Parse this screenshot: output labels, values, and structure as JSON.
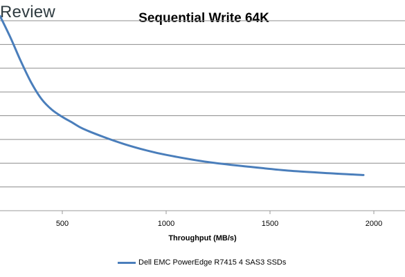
{
  "brand": {
    "text": "Review"
  },
  "chart_data": {
    "type": "line",
    "title": "Sequential Write 64K",
    "xlabel": "Throughput (MB/s)",
    "ylabel": "",
    "xlim": [
      200,
      2150
    ],
    "ylim": [
      0,
      8
    ],
    "xticks": [
      500,
      1000,
      1500,
      2000
    ],
    "grid": true,
    "legend_position": "bottom",
    "series": [
      {
        "name": "Dell EMC PowerEdge R7415 4 SAS3 SSDs",
        "color": "#4a7ebb",
        "x": [
          200,
          250,
          300,
          350,
          400,
          450,
          500,
          550,
          600,
          700,
          800,
          900,
          1000,
          1200,
          1400,
          1600,
          1800,
          1950
        ],
        "y": [
          8.2,
          7.3,
          6.3,
          5.4,
          4.7,
          4.25,
          3.95,
          3.7,
          3.45,
          3.1,
          2.8,
          2.55,
          2.35,
          2.05,
          1.85,
          1.68,
          1.57,
          1.5
        ]
      }
    ]
  }
}
